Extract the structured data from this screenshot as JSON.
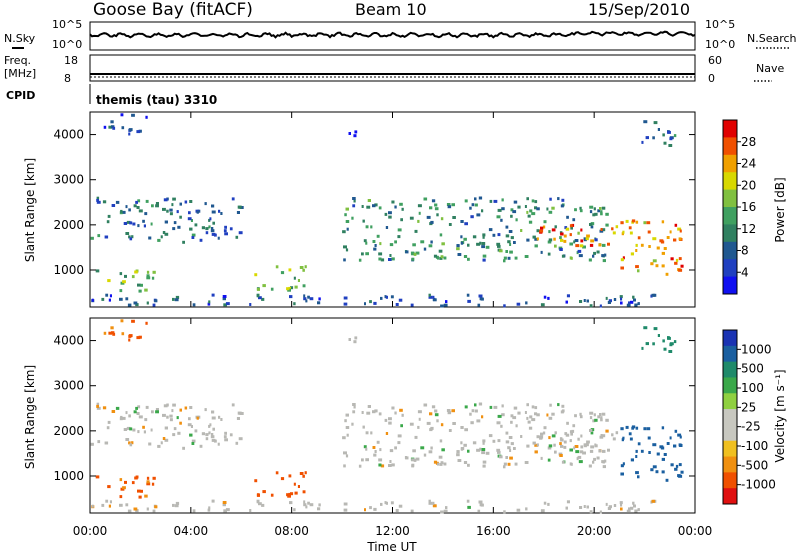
{
  "header": {
    "station": "Goose Bay (fitACF)",
    "beam": "Beam 10",
    "date": "15/Sep/2010"
  },
  "status_panels": {
    "nsky_label": "N.Sky",
    "nsky_ticks": [
      "10^5",
      "10^0"
    ],
    "nsearch_label": "N.Search",
    "nsearch_ticks": [
      "10^5",
      "10^0"
    ],
    "freq_label_1": "Freq.",
    "freq_label_2": "[MHz]",
    "freq_ticks": [
      "18",
      "8"
    ],
    "nave_label": "Nave",
    "nave_ticks": [
      "60",
      "0"
    ],
    "cpid_label": "CPID",
    "cpid_value": "themis (tau) 3310"
  },
  "axes": {
    "ylabel_power": "Slant Range [km]",
    "ylabel_velocity": "Slant Range [km]",
    "y_ticks": [
      "4000",
      "3000",
      "2000",
      "1000"
    ],
    "x_ticks": [
      "00:00",
      "04:00",
      "08:00",
      "12:00",
      "16:00",
      "20:00",
      "00:00"
    ],
    "xlabel": "Time UT"
  },
  "colorbars": {
    "power_label": "Power [dB]",
    "power_ticks": [
      "28",
      "24",
      "20",
      "16",
      "12",
      "8",
      "4"
    ],
    "power_colors": [
      "#e00000",
      "#f05000",
      "#f0a000",
      "#d8d800",
      "#80c040",
      "#40a060",
      "#308060",
      "#205890",
      "#2040c0",
      "#1010f0"
    ],
    "velocity_label": "Velocity [m s⁻¹]",
    "velocity_ticks": [
      "1000",
      "500",
      "100",
      "25",
      "-25",
      "-100",
      "-500",
      "-1000"
    ],
    "velocity_colors": [
      "#1a33b3",
      "#1a5fa0",
      "#1f8a6a",
      "#3aa84a",
      "#8fd040",
      "#c8c8c0",
      "#c8c8c0",
      "#f0c020",
      "#f09010",
      "#f05000",
      "#e01010"
    ],
    "ground_scatter_color": "#b8b8b4"
  },
  "chart_data": {
    "type": "heatmap",
    "x_range_hours": [
      0,
      24
    ],
    "y_range_km": [
      180,
      4500
    ],
    "panels": [
      "power",
      "velocity"
    ],
    "scatter_regions": [
      {
        "t": [
          0.0,
          6.0
        ],
        "r": [
          1600,
          2600
        ],
        "power": 10,
        "velocity": 0
      },
      {
        "t": [
          0.5,
          2.2
        ],
        "r": [
          4000,
          4500
        ],
        "power": 6,
        "velocity": -100
      },
      {
        "t": [
          0.2,
          2.5
        ],
        "r": [
          500,
          1000
        ],
        "power": 16,
        "velocity": -100
      },
      {
        "t": [
          0.0,
          23.0
        ],
        "r": [
          200,
          450
        ],
        "power": 8,
        "velocity": 0
      },
      {
        "t": [
          6.5,
          8.6
        ],
        "r": [
          550,
          1100
        ],
        "power": 16,
        "velocity": -300
      },
      {
        "t": [
          10.0,
          20.5
        ],
        "r": [
          1200,
          2600
        ],
        "power": 12,
        "velocity": 0
      },
      {
        "t": [
          17.5,
          21.0
        ],
        "r": [
          1500,
          2000
        ],
        "power": 26,
        "velocity": 0
      },
      {
        "t": [
          21.0,
          23.5
        ],
        "r": [
          900,
          2100
        ],
        "power": 24,
        "velocity": 500
      },
      {
        "t": [
          10.2,
          10.8
        ],
        "r": [
          3800,
          4100
        ],
        "power": 8,
        "velocity": 0
      },
      {
        "t": [
          21.8,
          23.2
        ],
        "r": [
          3700,
          4300
        ],
        "power": 10,
        "velocity": 100
      }
    ]
  }
}
